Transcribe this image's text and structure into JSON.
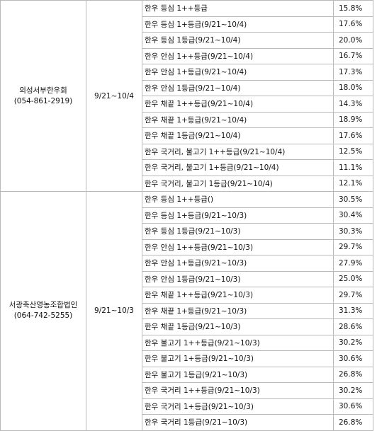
{
  "groups": [
    {
      "store_name": "의성서부한우회",
      "store_phone": "(054-861-2919)",
      "period": "9/21~10/4",
      "rows": [
        {
          "item": "한우 등심 1++등급",
          "rate": "15.8%"
        },
        {
          "item": "한우 등심 1+등급(9/21~10/4)",
          "rate": "17.6%"
        },
        {
          "item": "한우 등심 1등급(9/21~10/4)",
          "rate": "20.0%"
        },
        {
          "item": "한우 안심 1++등급(9/21~10/4)",
          "rate": "16.7%"
        },
        {
          "item": "한우 안심 1+등급(9/21~10/4)",
          "rate": "17.3%"
        },
        {
          "item": "한우 안심 1등급(9/21~10/4)",
          "rate": "18.0%"
        },
        {
          "item": "한우 채끝 1++등급(9/21~10/4)",
          "rate": "14.3%"
        },
        {
          "item": "한우 채끝 1+등급(9/21~10/4)",
          "rate": "18.9%"
        },
        {
          "item": "한우 채끝 1등급(9/21~10/4)",
          "rate": "17.6%"
        },
        {
          "item": "한우 국거리, 불고기 1++등급(9/21~10/4)",
          "rate": "12.5%"
        },
        {
          "item": "한우 국거리, 불고기 1+등급(9/21~10/4)",
          "rate": "11.1%"
        },
        {
          "item": "한우 국거리, 불고기 1등급(9/21~10/4)",
          "rate": "12.1%"
        }
      ]
    },
    {
      "store_name": "서광축산영농조합법인",
      "store_phone": "(064-742-5255)",
      "period": "9/21~10/3",
      "rows": [
        {
          "item": "한우 등심 1++등급()",
          "rate": "30.5%"
        },
        {
          "item": "한우 등심 1+등급(9/21~10/3)",
          "rate": "30.4%"
        },
        {
          "item": "한우 등심 1등급(9/21~10/3)",
          "rate": "30.3%"
        },
        {
          "item": "한우 안심 1++등급(9/21~10/3)",
          "rate": "29.7%"
        },
        {
          "item": "한우 안심 1+등급(9/21~10/3)",
          "rate": "27.9%"
        },
        {
          "item": "한우 안심 1등급(9/21~10/3)",
          "rate": "25.0%"
        },
        {
          "item": "한우 채끝 1++등급(9/21~10/3)",
          "rate": "29.7%"
        },
        {
          "item": "한우 채끝 1+등급(9/21~10/3)",
          "rate": "31.3%"
        },
        {
          "item": "한우 채끝 1등급(9/21~10/3)",
          "rate": "28.6%"
        },
        {
          "item": "한우 불고기 1++등급(9/21~10/3)",
          "rate": "30.2%"
        },
        {
          "item": "한우 불고기 1+등급(9/21~10/3)",
          "rate": "30.6%"
        },
        {
          "item": "한우 불고기 1등급(9/21~10/3)",
          "rate": "26.8%"
        },
        {
          "item": "한우 국거리 1++등급(9/21~10/3)",
          "rate": "30.2%"
        },
        {
          "item": "한우 국거리 1+등급(9/21~10/3)",
          "rate": "30.6%"
        },
        {
          "item": "한우 국거리 1등급(9/21~10/3)",
          "rate": "26.8%"
        }
      ]
    }
  ]
}
